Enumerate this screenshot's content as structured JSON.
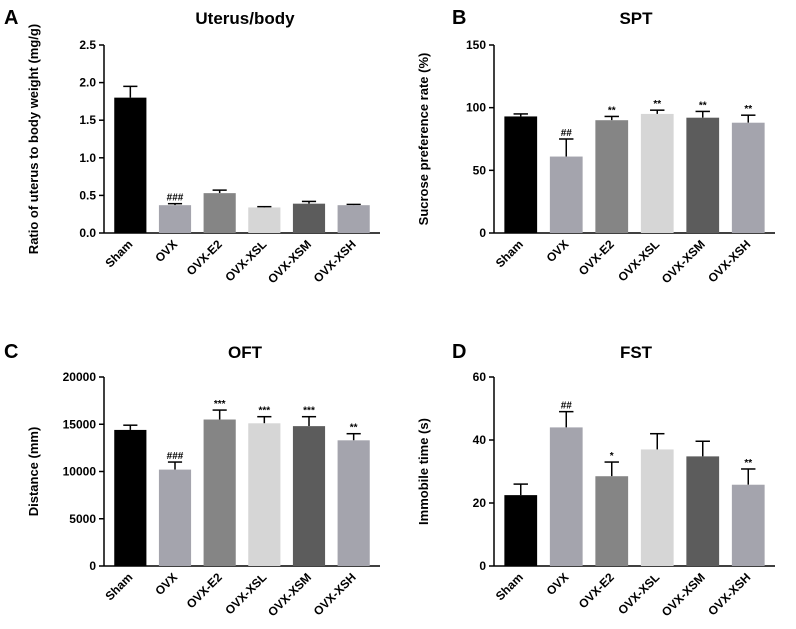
{
  "chart_data": [
    {
      "type": "bar",
      "panel": "A",
      "title": "Uterus/body",
      "ylabel": "Ratio of uterus to body weight (mg/g)",
      "ylim": [
        0,
        2.5
      ],
      "yticks": [
        0.0,
        0.5,
        1.0,
        1.5,
        2.0,
        2.5
      ],
      "ytick_labels": [
        "0.0",
        "0.5",
        "1.0",
        "1.5",
        "2.0",
        "2.5"
      ],
      "categories": [
        "Sham",
        "OVX",
        "OVX-E2",
        "OVX-XSL",
        "OVX-XSM",
        "OVX-XSH"
      ],
      "values": [
        1.8,
        0.37,
        0.53,
        0.34,
        0.39,
        0.37
      ],
      "errors": [
        0.15,
        0.02,
        0.04,
        0.01,
        0.03,
        0.01
      ],
      "annotations": [
        "",
        "###",
        "",
        "",
        "",
        ""
      ],
      "colors": [
        "#000000",
        "#a4a4ad",
        "#858585",
        "#d6d6d6",
        "#5c5c5c",
        "#a4a4ad"
      ]
    },
    {
      "type": "bar",
      "panel": "B",
      "title": "SPT",
      "ylabel": "Sucrose preference rate (%)",
      "ylim": [
        0,
        150
      ],
      "yticks": [
        0,
        50,
        100,
        150
      ],
      "ytick_labels": [
        "0",
        "50",
        "100",
        "150"
      ],
      "categories": [
        "Sham",
        "OVX",
        "OVX-E2",
        "OVX-XSL",
        "OVX-XSM",
        "OVX-XSH"
      ],
      "values": [
        93,
        61,
        90,
        95,
        92,
        88
      ],
      "errors": [
        2,
        14,
        3,
        3,
        5,
        6
      ],
      "annotations": [
        "",
        "##",
        "**",
        "**",
        "**",
        "**"
      ],
      "colors": [
        "#000000",
        "#a4a4ad",
        "#858585",
        "#d6d6d6",
        "#5c5c5c",
        "#a4a4ad"
      ]
    },
    {
      "type": "bar",
      "panel": "C",
      "title": "OFT",
      "ylabel": "Distance (mm)",
      "ylim": [
        0,
        20000
      ],
      "yticks": [
        0,
        5000,
        10000,
        15000,
        20000
      ],
      "ytick_labels": [
        "0",
        "5000",
        "10000",
        "15000",
        "20000"
      ],
      "categories": [
        "Sham",
        "OVX",
        "OVX-E2",
        "OVX-XSL",
        "OVX-XSM",
        "OVX-XSH"
      ],
      "values": [
        14400,
        10200,
        15500,
        15100,
        14800,
        13300
      ],
      "errors": [
        500,
        800,
        1000,
        700,
        1000,
        700
      ],
      "annotations": [
        "",
        "###",
        "***",
        "***",
        "***",
        "**"
      ],
      "colors": [
        "#000000",
        "#a4a4ad",
        "#858585",
        "#d6d6d6",
        "#5c5c5c",
        "#a4a4ad"
      ]
    },
    {
      "type": "bar",
      "panel": "D",
      "title": "FST",
      "ylabel": "Immobile time (s)",
      "ylim": [
        0,
        60
      ],
      "yticks": [
        0,
        20,
        40,
        60
      ],
      "ytick_labels": [
        "0",
        "20",
        "40",
        "60"
      ],
      "categories": [
        "Sham",
        "OVX",
        "OVX-E2",
        "OVX-XSL",
        "OVX-XSM",
        "OVX-XSH"
      ],
      "values": [
        22.5,
        44,
        28.5,
        37,
        34.8,
        25.8
      ],
      "errors": [
        3.5,
        5,
        4.5,
        5,
        4.8,
        5
      ],
      "annotations": [
        "",
        "##",
        "*",
        "",
        "",
        "**"
      ],
      "colors": [
        "#000000",
        "#a4a4ad",
        "#858585",
        "#d6d6d6",
        "#5c5c5c",
        "#a4a4ad"
      ]
    }
  ]
}
